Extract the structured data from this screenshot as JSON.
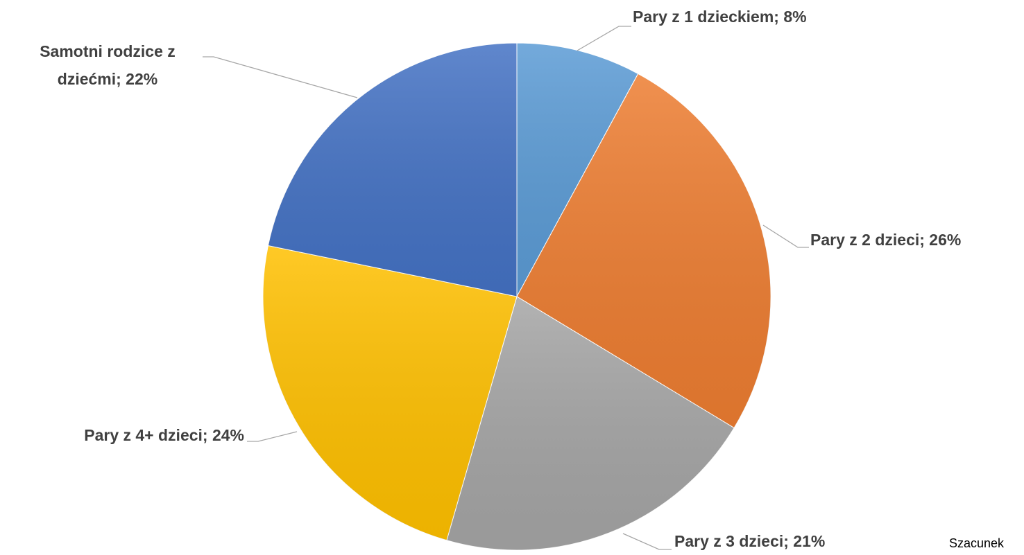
{
  "chart_data": {
    "type": "pie",
    "values": [
      8,
      26,
      21,
      24,
      22
    ],
    "value_labels": [
      [
        "Pary z 1 dzieckiem; 8%"
      ],
      [
        "Pary z 2 dzieci; 26%"
      ],
      [
        "Pary z 3 dzieci; 21%"
      ],
      [
        "Pary z 4+ dzieci; 24%"
      ],
      [
        "Samotni rodzice z",
        "dziećmi; 22%"
      ]
    ],
    "colors": [
      "#5b9bd5",
      "#ed7d31",
      "#a5a5a5",
      "#ffc000",
      "#4472c4"
    ],
    "note": "Szacunek"
  }
}
